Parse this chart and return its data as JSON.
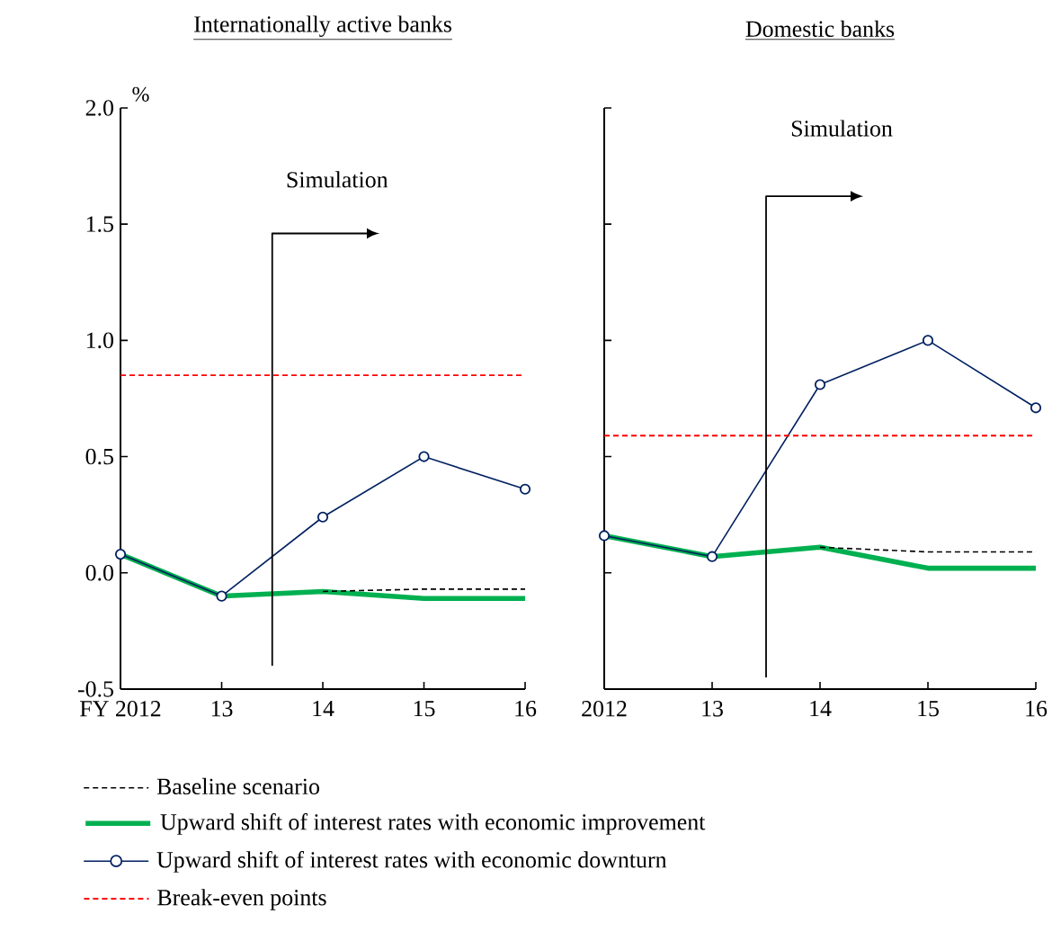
{
  "chart_data": [
    {
      "type": "line",
      "title": "Internationally active banks",
      "ylabel": "%",
      "categories": [
        "FY 2012",
        "13",
        "14",
        "15",
        "16"
      ],
      "series": [
        {
          "name": "Baseline scenario",
          "color": "#000000",
          "line_style": "dashed",
          "values": [
            null,
            null,
            -0.08,
            -0.07,
            -0.07
          ]
        },
        {
          "name": "Upward shift of interest rates with economic improvement",
          "color": "#00b050",
          "values": [
            0.08,
            -0.1,
            -0.08,
            -0.11,
            -0.11
          ]
        },
        {
          "name": "Upward shift of interest rates with economic downturn",
          "color": "#002060",
          "marker": "circle",
          "values": [
            0.08,
            -0.1,
            0.24,
            0.5,
            0.36
          ]
        }
      ],
      "ref_lines": [
        {
          "axis": "y",
          "value": 0.85,
          "label": "Break-even points",
          "color": "#ff0000",
          "line_style": "dashed"
        }
      ],
      "annotations": [
        "Simulation"
      ],
      "ylim": [
        -0.5,
        2.0
      ],
      "yticks": [
        -0.5,
        {
          "value": 0,
          "label": "0.0"
        },
        0.5,
        {
          "value": 1,
          "label": "1.0"
        },
        1.5,
        {
          "value": 2,
          "label": "2.0"
        }
      ],
      "legend": "bottom"
    },
    {
      "type": "line",
      "title": "Domestic banks",
      "categories": [
        "2012",
        "13",
        "14",
        "15",
        "16"
      ],
      "series": [
        {
          "color": "#000000",
          "line_style": "dashed",
          "values": [
            null,
            null,
            0.11,
            0.09,
            0.09
          ]
        },
        {
          "color": "#00b050",
          "values": [
            0.16,
            0.07,
            0.11,
            0.02,
            0.02
          ]
        },
        {
          "color": "#002060",
          "marker": "circle",
          "values": [
            0.16,
            0.07,
            0.81,
            1.0,
            0.71
          ]
        }
      ],
      "ref_lines": [
        {
          "axis": "y",
          "value": 0.59,
          "color": "#ff0000",
          "line_style": "dashed"
        }
      ],
      "annotations": [
        "Simulation"
      ],
      "ylim": [
        -0.5,
        2.0
      ],
      "yticks": [
        -0.5,
        0,
        0.5,
        1,
        1.5,
        2
      ],
      "tick_labels": "x"
    }
  ]
}
